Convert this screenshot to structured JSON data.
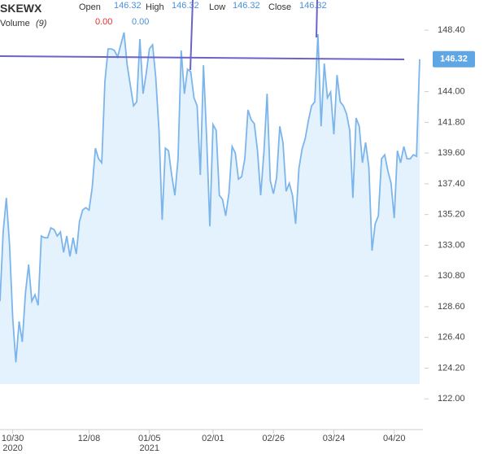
{
  "header": {
    "symbol": "SKEWX",
    "open_label": "Open",
    "open": 146.32,
    "high_label": "High",
    "high": 146.32,
    "low_label": "Low",
    "low": 146.32,
    "close_label": "Close",
    "close": 146.32,
    "volume_label": "Volume",
    "volume_period": "(9)",
    "volume_value_1": "0.00",
    "volume_value_2": "0.00"
  },
  "chart_data": {
    "type": "area",
    "categories": [
      null,
      null,
      null,
      null,
      "10/30\n2020",
      null,
      null,
      null,
      null,
      null,
      null,
      null,
      null,
      null,
      null,
      null,
      null,
      null,
      null,
      null,
      null,
      null,
      null,
      null,
      null,
      null,
      null,
      null,
      "12/08",
      null,
      null,
      null,
      null,
      null,
      null,
      null,
      null,
      null,
      null,
      null,
      null,
      null,
      null,
      null,
      null,
      null,
      null,
      "01/05\n2021",
      null,
      null,
      null,
      null,
      null,
      null,
      null,
      null,
      null,
      null,
      null,
      null,
      null,
      null,
      null,
      null,
      null,
      null,
      null,
      "02/01",
      null,
      null,
      null,
      null,
      null,
      null,
      null,
      null,
      null,
      null,
      null,
      null,
      null,
      null,
      null,
      null,
      null,
      null,
      "02/26",
      null,
      null,
      null,
      null,
      null,
      null,
      null,
      null,
      null,
      null,
      null,
      null,
      null,
      null,
      null,
      null,
      null,
      null,
      "03/24",
      null,
      null,
      null,
      null,
      null,
      null,
      null,
      null,
      null,
      null,
      null,
      null,
      null,
      null,
      null,
      null,
      null,
      null,
      "04/20",
      null,
      null,
      null,
      null,
      null,
      null,
      null,
      null
    ],
    "values": [
      128.99,
      133.95,
      136.39,
      133.07,
      127.83,
      124.62,
      127.54,
      126.08,
      129.58,
      131.62,
      128.99,
      129.46,
      128.7,
      133.66,
      133.54,
      133.54,
      134.24,
      134.12,
      133.66,
      133.95,
      132.49,
      133.66,
      132.2,
      133.54,
      132.37,
      134.7,
      135.52,
      135.69,
      135.52,
      137.15,
      139.95,
      139.19,
      138.9,
      144.73,
      147.06,
      147.06,
      146.94,
      146.48,
      147.35,
      148.23,
      145.89,
      144.44,
      142.98,
      143.27,
      147.76,
      143.85,
      145.31,
      147.06,
      147.35,
      145.02,
      141.23,
      134.82,
      139.95,
      139.77,
      138.03,
      136.57,
      139.19,
      146.94,
      143.85,
      145.6,
      145.43,
      143.56,
      142.98,
      138.03,
      145.89,
      140.65,
      134.35,
      141.64,
      141.23,
      136.57,
      136.28,
      135.11,
      136.74,
      140.07,
      139.6,
      137.73,
      137.91,
      139.19,
      142.69,
      141.99,
      141.7,
      139.77,
      136.57,
      139.66,
      143.85,
      137.62,
      136.69,
      137.85,
      141.52,
      140.36,
      136.86,
      137.44,
      136.57,
      134.53,
      138.49,
      139.89,
      140.65,
      141.93,
      142.98,
      143.27,
      148.11,
      141.52,
      146.01,
      143.56,
      143.97,
      140.94,
      145.19,
      143.27,
      142.98,
      142.4,
      141.23,
      136.39,
      142.11,
      141.52,
      138.9,
      140.36,
      138.61,
      132.61,
      134.53,
      135.11,
      139.19,
      139.48,
      138.32,
      137.44,
      134.94,
      139.77,
      138.9,
      140.07,
      139.19,
      139.19,
      139.48,
      139.37,
      146.32
    ],
    "color": "#7cb5ec",
    "fill_color": "#e4f2fd",
    "current_value": 146.32,
    "ylim": [
      119.8,
      150.56
    ],
    "yticks": [
      {
        "value": 122,
        "label": "122.00"
      },
      {
        "value": 124.2,
        "label": "124.20"
      },
      {
        "value": 126.4,
        "label": "126.40"
      },
      {
        "value": 128.6,
        "label": "128.60"
      },
      {
        "value": 130.8,
        "label": "130.80"
      },
      {
        "value": 133,
        "label": "133.00"
      },
      {
        "value": 135.2,
        "label": "135.20"
      },
      {
        "value": 137.4,
        "label": "137.40"
      },
      {
        "value": 139.6,
        "label": "139.60"
      },
      {
        "value": 141.8,
        "label": "141.80"
      },
      {
        "value": 144,
        "label": "144.00"
      },
      {
        "value": 148.4,
        "label": "148.40"
      }
    ],
    "grid": false
  }
}
